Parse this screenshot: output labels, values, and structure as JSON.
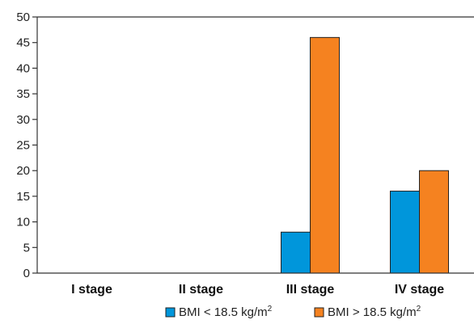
{
  "chart_data": {
    "type": "bar",
    "categories": [
      "I stage",
      "II stage",
      "III stage",
      "IV stage"
    ],
    "series": [
      {
        "name": "BMI < 18.5 kg/m2",
        "legend_text": "BMI < 18.5 kg/m",
        "legend_sup": "2",
        "color": "#0096db",
        "values": [
          0,
          0,
          8,
          16
        ]
      },
      {
        "name": "BMI > 18.5 kg/m2",
        "legend_text": "BMI > 18.5 kg/m",
        "legend_sup": "2",
        "color": "#f58220",
        "values": [
          0,
          0,
          46,
          20
        ]
      }
    ],
    "title": "",
    "xlabel": "",
    "ylabel": "",
    "ylim": [
      0,
      50
    ],
    "yticks": [
      "0",
      "5",
      "10",
      "15",
      "20",
      "25",
      "30",
      "35",
      "40",
      "45",
      "50"
    ],
    "grid": false,
    "legend": "bottom"
  }
}
